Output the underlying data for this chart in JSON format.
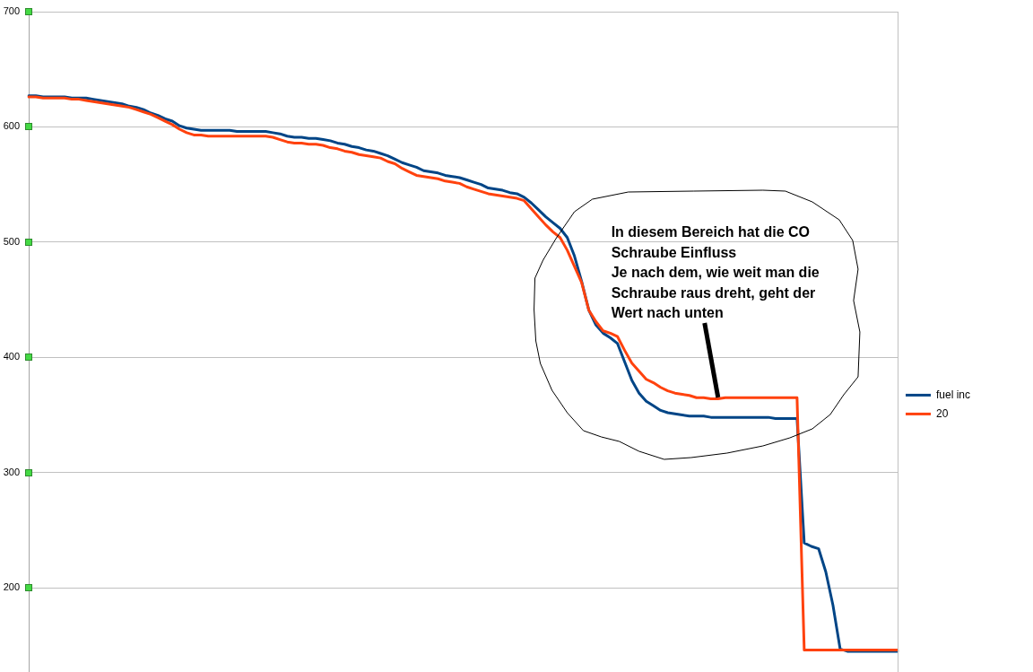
{
  "chart_data": {
    "type": "line",
    "categories": [
      null,
      null,
      null,
      null,
      null,
      null,
      null,
      null,
      null,
      null,
      null,
      null,
      null,
      null,
      null,
      null,
      null,
      null,
      null,
      null,
      null,
      null,
      null,
      null,
      null,
      null,
      null,
      null,
      null,
      null,
      null,
      null,
      null,
      null,
      null,
      null,
      null,
      null,
      null,
      null,
      null,
      null,
      null,
      null,
      null,
      null,
      null,
      null,
      null,
      null,
      null,
      null,
      null,
      null,
      null,
      null,
      null,
      null,
      null,
      null,
      null,
      null,
      null,
      null,
      null,
      null,
      null,
      null,
      null,
      null,
      null,
      null,
      null,
      null,
      null,
      null,
      null,
      null,
      null,
      null,
      null,
      null,
      null,
      null,
      null,
      null,
      null,
      null,
      null,
      null,
      null,
      null,
      null,
      null,
      null,
      null,
      null,
      null,
      null,
      null,
      null,
      null,
      null,
      null,
      null,
      null,
      null,
      null,
      null,
      null,
      null,
      null,
      null,
      null,
      null,
      null,
      null,
      null,
      null,
      null,
      null,
      null
    ],
    "series": [
      {
        "name": "fuel inc",
        "color": "#004586",
        "values": [
          627,
          627,
          626,
          626,
          626,
          626,
          625,
          625,
          625,
          624,
          623,
          622,
          621,
          620,
          618,
          617,
          615,
          612,
          610,
          607,
          605,
          601,
          599,
          598,
          597,
          597,
          597,
          597,
          597,
          596,
          596,
          596,
          596,
          596,
          595,
          594,
          592,
          591,
          591,
          590,
          590,
          589,
          588,
          586,
          585,
          583,
          582,
          580,
          579,
          577,
          575,
          572,
          569,
          567,
          565,
          562,
          561,
          560,
          558,
          557,
          556,
          554,
          552,
          550,
          547,
          546,
          545,
          543,
          542,
          539,
          534,
          528,
          522,
          517,
          512,
          504,
          488,
          466,
          441,
          428,
          421,
          417,
          412,
          396,
          380,
          369,
          362,
          358,
          354,
          352,
          351,
          350,
          349,
          349,
          349,
          348,
          348,
          348,
          348,
          348,
          348,
          348,
          348,
          348,
          347,
          347,
          347,
          347,
          239,
          236,
          234,
          214,
          185,
          147,
          145,
          145,
          145,
          145,
          145,
          145,
          145,
          145
        ]
      },
      {
        "name": "20",
        "color": "#ff420e",
        "values": [
          626,
          626,
          625,
          625,
          625,
          625,
          624,
          624,
          623,
          622,
          621,
          620,
          619,
          618,
          617,
          615,
          613,
          611,
          608,
          605,
          602,
          598,
          595,
          593,
          593,
          592,
          592,
          592,
          592,
          592,
          592,
          592,
          592,
          592,
          591,
          589,
          587,
          586,
          586,
          585,
          585,
          584,
          582,
          581,
          579,
          578,
          576,
          575,
          574,
          573,
          570,
          568,
          564,
          561,
          558,
          557,
          556,
          555,
          553,
          552,
          551,
          548,
          546,
          544,
          542,
          541,
          540,
          539,
          538,
          536,
          529,
          522,
          515,
          509,
          504,
          493,
          479,
          465,
          441,
          431,
          423,
          421,
          418,
          406,
          395,
          388,
          381,
          378,
          374,
          371,
          369,
          368,
          367,
          365,
          365,
          364,
          364,
          365,
          365,
          365,
          365,
          365,
          365,
          365,
          365,
          365,
          365,
          365,
          146,
          146,
          146,
          146,
          146,
          146,
          146,
          146,
          146,
          146,
          146,
          146,
          146,
          146
        ]
      }
    ],
    "ylim": [
      127,
      700
    ],
    "yticks": [
      200,
      300,
      400,
      500,
      600,
      700
    ],
    "grid": "y",
    "legend": "right",
    "tick_labels": "y",
    "marker": "none",
    "annotations": [
      "In diesem Bereich hat die CO Schraube Einfluss\nJe nach dem, wie weit man die Schraube raus dreht, geht der Wert nach unten"
    ]
  }
}
